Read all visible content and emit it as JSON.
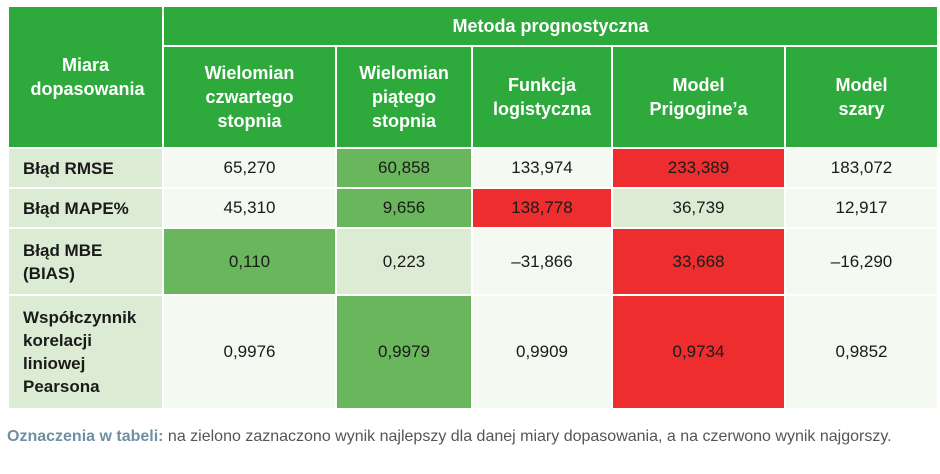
{
  "table": {
    "group_header": "Metoda prognostyczna",
    "corner_header": "Miara dopasowania",
    "columns": [
      "Wielomian czwartego stopnia",
      "Wielomian piątego stopnia",
      "Funkcja logistyczna",
      "Model Prigogine’a",
      "Model szary"
    ],
    "rows": [
      {
        "label": "Błąd RMSE",
        "cells": [
          {
            "value": "65,270",
            "mark": "none"
          },
          {
            "value": "60,858",
            "mark": "best"
          },
          {
            "value": "133,974",
            "mark": "none"
          },
          {
            "value": "233,389",
            "mark": "worst"
          },
          {
            "value": "183,072",
            "mark": "none"
          }
        ]
      },
      {
        "label": "Błąd MAPE%",
        "cells": [
          {
            "value": "45,310",
            "mark": "none"
          },
          {
            "value": "9,656",
            "mark": "best"
          },
          {
            "value": "138,778",
            "mark": "worst"
          },
          {
            "value": "36,739",
            "mark": "none"
          },
          {
            "value": "12,917",
            "mark": "none"
          }
        ]
      },
      {
        "label": "Błąd MBE (BIAS)",
        "cells": [
          {
            "value": "0,110",
            "mark": "best"
          },
          {
            "value": "0,223",
            "mark": "none"
          },
          {
            "value": "–31,866",
            "mark": "none"
          },
          {
            "value": "33,668",
            "mark": "worst"
          },
          {
            "value": "–16,290",
            "mark": "none"
          }
        ]
      },
      {
        "label": "Współczynnik korelacji liniowej Pearsona",
        "cells": [
          {
            "value": "0,9976",
            "mark": "none"
          },
          {
            "value": "0,9979",
            "mark": "best"
          },
          {
            "value": "0,9909",
            "mark": "none"
          },
          {
            "value": "0,9734",
            "mark": "worst"
          },
          {
            "value": "0,9852",
            "mark": "none"
          }
        ]
      }
    ]
  },
  "caption": {
    "lead": "Oznaczenia w tabeli:",
    "text": " na zielono zaznaczono wynik najlepszy dla danej miary dopasowania, a na czerwono wynik najgorszy."
  },
  "colors": {
    "header_green": "#2eaa3c",
    "best_green": "#6ab65c",
    "worst_red": "#ee2e2e",
    "light_green": "#dcecd4",
    "pale": "#f4f9f1"
  }
}
